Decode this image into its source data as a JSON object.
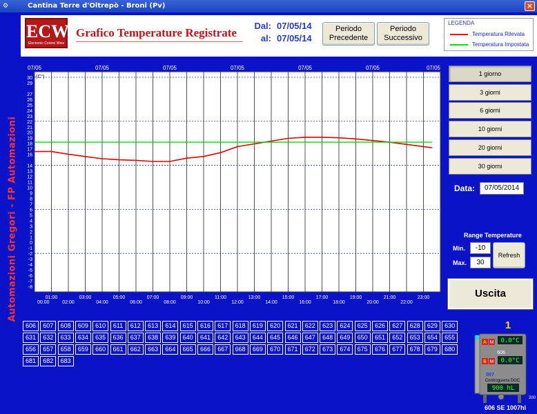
{
  "window": {
    "title": "Cantina Terre d'Oltrepò - Broni (Pv)",
    "app_icon": "gear-icon",
    "close_label": "×"
  },
  "side_banner": "Automazioni Gregori - FP Automazioni",
  "header": {
    "logo_text": "ECW",
    "logo_subtext": "Electronic Control Wine",
    "title": "Grafico Temperature Registrate",
    "from_label": "Dal:",
    "from_date": "07/05/14",
    "to_label": "al:",
    "to_date": "07/05/14",
    "prev_button": [
      "Periodo",
      "Precedente"
    ],
    "next_button": [
      "Periodo",
      "Successivo"
    ]
  },
  "legend": {
    "title": "LEGENDA",
    "items": [
      {
        "label": "Temperatura Rilevata",
        "color": "#ff0000"
      },
      {
        "label": "Temperatura Impostata",
        "color": "#00dd00"
      }
    ]
  },
  "period_buttons": [
    "1 giorno",
    "3 giorni",
    "6 giorni",
    "10 giorni",
    "20 giorni",
    "30 giorni"
  ],
  "data": {
    "label": "Data:",
    "value": "07/05/2014"
  },
  "range_temperature": {
    "title": "Range Temperature",
    "min_label": "Min.",
    "min_value": "-10",
    "max_label": "Max.",
    "max_value": "30",
    "refresh_label": "Refresh"
  },
  "exit_label": "Uscita",
  "chart_data": {
    "type": "line",
    "unit_label": "(C°)",
    "date_labels": [
      "07/05",
      "07/05",
      "07/05",
      "07/05",
      "07/05",
      "07/05",
      "07/05"
    ],
    "x_labels_top": [
      "01:00",
      "03:00",
      "05:00",
      "07:00",
      "09:00",
      "11:00",
      "13:00",
      "15:00",
      "17:00",
      "19:00",
      "21:00",
      "23:00"
    ],
    "x_labels_bottom": [
      "00:00",
      "02:00",
      "04:00",
      "06:00",
      "08:00",
      "10:00",
      "12:00",
      "14:00",
      "16:00",
      "18:00",
      "20:00",
      "22:00"
    ],
    "ylim": [
      -9,
      31
    ],
    "y_ticks": [
      30,
      29,
      27,
      26,
      25,
      24,
      23,
      22,
      21,
      20,
      19,
      18,
      17,
      16,
      14,
      13,
      12,
      11,
      10,
      9,
      8,
      7,
      6,
      5,
      4,
      3,
      2,
      1,
      0,
      -1,
      -2,
      -3,
      -4,
      -5,
      -6,
      -7,
      -8
    ],
    "grid_dashed_y": [
      30,
      22,
      14,
      6,
      -2
    ],
    "series": [
      {
        "name": "Temperatura Rilevata",
        "color": "#dd0000",
        "x": [
          0,
          1,
          2,
          3,
          4,
          5,
          6,
          7,
          8,
          9,
          10,
          11,
          12,
          13,
          14,
          15,
          16,
          17,
          18,
          19,
          20,
          21,
          22,
          23.5
        ],
        "y": [
          16.5,
          16.5,
          16.0,
          15.6,
          15.2,
          15.0,
          14.9,
          14.7,
          14.7,
          15.3,
          15.6,
          16.3,
          17.4,
          17.9,
          18.4,
          18.9,
          19.1,
          19.1,
          19.0,
          18.8,
          18.5,
          18.2,
          17.8,
          17.2
        ]
      },
      {
        "name": "Temperatura Impostata",
        "color": "#00dd00",
        "x": [
          0,
          23.5
        ],
        "y": [
          18.2,
          18.2
        ]
      }
    ]
  },
  "tank_numbers": [
    "606",
    "607",
    "608",
    "609",
    "610",
    "611",
    "612",
    "613",
    "614",
    "615",
    "616",
    "617",
    "618",
    "619",
    "620",
    "621",
    "622",
    "623",
    "624",
    "625",
    "626",
    "627",
    "628",
    "629",
    "630",
    "631",
    "632",
    "633",
    "634",
    "635",
    "636",
    "637",
    "638",
    "639",
    "640",
    "641",
    "642",
    "643",
    "644",
    "645",
    "646",
    "647",
    "648",
    "649",
    "650",
    "651",
    "652",
    "653",
    "654",
    "655",
    "656",
    "657",
    "658",
    "659",
    "660",
    "661",
    "662",
    "663",
    "664",
    "665",
    "666",
    "667",
    "668",
    "669",
    "670",
    "671",
    "672",
    "673",
    "674",
    "675",
    "676",
    "677",
    "678",
    "679",
    "680",
    "681",
    "682",
    "683"
  ],
  "tank_widget": {
    "index": "1",
    "id_a": "606",
    "temp_a": "0.0°C",
    "id_b": "007",
    "temp_b": "0.0°C",
    "product": "Controguerra DOC",
    "volume": "900 hL",
    "capacity": "200",
    "caption": "606 SE 1007hl",
    "letter_a": "A",
    "letter_m": "M",
    "letter_b": "B"
  }
}
